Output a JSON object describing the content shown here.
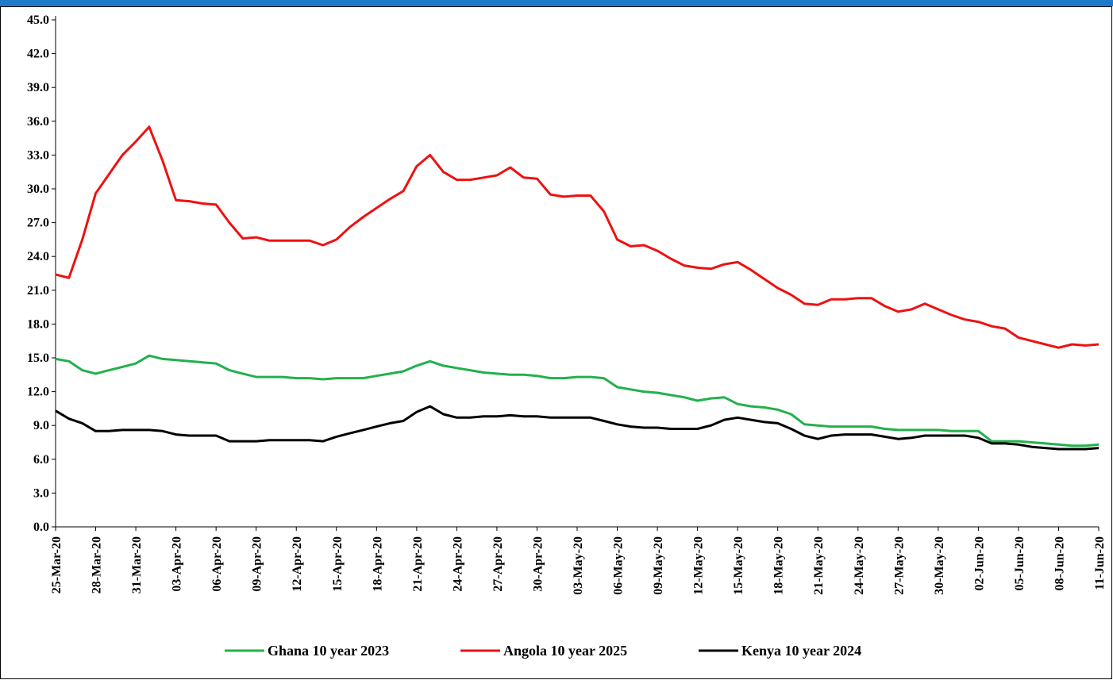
{
  "chart_data": {
    "type": "line",
    "categories": [
      "25-Mar-20",
      null,
      null,
      "28-Mar-20",
      null,
      null,
      "31-Mar-20",
      null,
      null,
      "03-Apr-20",
      null,
      null,
      "06-Apr-20",
      null,
      null,
      "09-Apr-20",
      null,
      null,
      "12-Apr-20",
      null,
      null,
      "15-Apr-20",
      null,
      null,
      "18-Apr-20",
      null,
      null,
      "21-Apr-20",
      null,
      null,
      "24-Apr-20",
      null,
      null,
      "27-Apr-20",
      null,
      null,
      "30-Apr-20",
      null,
      null,
      "03-May-20",
      null,
      null,
      "06-May-20",
      null,
      null,
      "09-May-20",
      null,
      null,
      "12-May-20",
      null,
      null,
      "15-May-20",
      null,
      null,
      "18-May-20",
      null,
      null,
      "21-May-20",
      null,
      null,
      "24-May-20",
      null,
      null,
      "27-May-20",
      null,
      null,
      "30-May-20",
      null,
      null,
      "02-Jun-20",
      null,
      null,
      "05-Jun-20",
      null,
      null,
      "08-Jun-20",
      null,
      null,
      "11-Jun-20"
    ],
    "series": [
      {
        "name": "Ghana 10 year 2023",
        "color": "#22b14c",
        "values": [
          14.9,
          14.7,
          13.9,
          13.6,
          13.9,
          14.2,
          14.5,
          15.2,
          14.9,
          14.8,
          14.7,
          14.6,
          14.5,
          13.9,
          13.6,
          13.3,
          13.3,
          13.3,
          13.2,
          13.2,
          13.1,
          13.2,
          13.2,
          13.2,
          13.4,
          13.6,
          13.8,
          14.3,
          14.7,
          14.3,
          14.1,
          13.9,
          13.7,
          13.6,
          13.5,
          13.5,
          13.4,
          13.2,
          13.2,
          13.3,
          13.3,
          13.2,
          12.4,
          12.2,
          12.0,
          11.9,
          11.7,
          11.5,
          11.2,
          11.4,
          11.5,
          10.9,
          10.7,
          10.6,
          10.4,
          10.0,
          9.1,
          9.0,
          8.9,
          8.9,
          8.9,
          8.9,
          8.7,
          8.6,
          8.6,
          8.6,
          8.6,
          8.5,
          8.5,
          8.5,
          7.6,
          7.6,
          7.6,
          7.5,
          7.4,
          7.3,
          7.2,
          7.2,
          7.3
        ]
      },
      {
        "name": "Angola 10 year 2025",
        "color": "#ee1111",
        "values": [
          22.4,
          22.1,
          25.5,
          29.6,
          31.3,
          33.0,
          34.2,
          35.5,
          32.5,
          29.0,
          28.9,
          28.7,
          28.6,
          27.0,
          25.6,
          25.7,
          25.4,
          25.4,
          25.4,
          25.4,
          25.0,
          25.5,
          26.6,
          27.5,
          28.3,
          29.1,
          29.8,
          32.0,
          33.0,
          31.5,
          30.8,
          30.8,
          31.0,
          31.2,
          31.9,
          31.0,
          30.9,
          29.5,
          29.3,
          29.4,
          29.4,
          28.0,
          25.5,
          24.9,
          25.0,
          24.5,
          23.8,
          23.2,
          23.0,
          22.9,
          23.3,
          23.5,
          22.8,
          22.0,
          21.2,
          20.6,
          19.8,
          19.7,
          20.2,
          20.2,
          20.3,
          20.3,
          19.6,
          19.1,
          19.3,
          19.8,
          19.3,
          18.8,
          18.4,
          18.2,
          17.8,
          17.6,
          16.8,
          16.5,
          16.2,
          15.9,
          16.2,
          16.1,
          16.2
        ]
      },
      {
        "name": "Kenya 10 year 2024",
        "color": "#000000",
        "values": [
          10.3,
          9.6,
          9.2,
          8.5,
          8.5,
          8.6,
          8.6,
          8.6,
          8.5,
          8.2,
          8.1,
          8.1,
          8.1,
          7.6,
          7.6,
          7.6,
          7.7,
          7.7,
          7.7,
          7.7,
          7.6,
          8.0,
          8.3,
          8.6,
          8.9,
          9.2,
          9.4,
          10.2,
          10.7,
          10.0,
          9.7,
          9.7,
          9.8,
          9.8,
          9.9,
          9.8,
          9.8,
          9.7,
          9.7,
          9.7,
          9.7,
          9.4,
          9.1,
          8.9,
          8.8,
          8.8,
          8.7,
          8.7,
          8.7,
          9.0,
          9.5,
          9.7,
          9.5,
          9.3,
          9.2,
          8.7,
          8.1,
          7.8,
          8.1,
          8.2,
          8.2,
          8.2,
          8.0,
          7.8,
          7.9,
          8.1,
          8.1,
          8.1,
          8.1,
          7.9,
          7.4,
          7.4,
          7.3,
          7.1,
          7.0,
          6.9,
          6.9,
          6.9,
          7.0
        ]
      }
    ],
    "ylim": [
      0,
      45
    ],
    "yticks": [
      {
        "value": 0,
        "label": "0.0"
      },
      {
        "value": 3,
        "label": "3.0"
      },
      {
        "value": 6,
        "label": "6.0"
      },
      {
        "value": 9,
        "label": "9.0"
      },
      {
        "value": 12,
        "label": "12.0"
      },
      {
        "value": 15,
        "label": "15.0"
      },
      {
        "value": 18,
        "label": "18.0"
      },
      {
        "value": 21,
        "label": "21.0"
      },
      {
        "value": 24,
        "label": "24.0"
      },
      {
        "value": 27,
        "label": "27.0"
      },
      {
        "value": 30,
        "label": "30.0"
      },
      {
        "value": 33,
        "label": "33.0"
      },
      {
        "value": 36,
        "label": "36.0"
      },
      {
        "value": 39,
        "label": "39.0"
      },
      {
        "value": 42,
        "label": "42.0"
      },
      {
        "value": 45,
        "label": "45.0"
      }
    ],
    "grid": false,
    "legend": "bottom"
  }
}
